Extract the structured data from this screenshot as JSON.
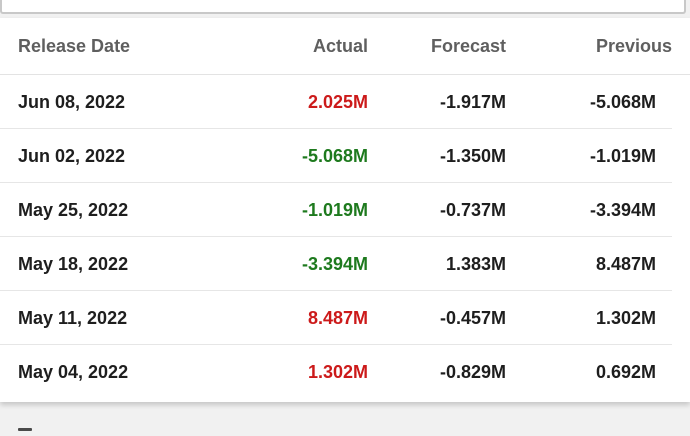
{
  "table": {
    "headers": {
      "date": "Release Date",
      "actual": "Actual",
      "forecast": "Forecast",
      "previous": "Previous"
    },
    "rows": [
      {
        "date": "Jun 08, 2022",
        "actual": "2.025M",
        "actual_trend": "up",
        "forecast": "-1.917M",
        "previous": "-5.068M"
      },
      {
        "date": "Jun 02, 2022",
        "actual": "-5.068M",
        "actual_trend": "down",
        "forecast": "-1.350M",
        "previous": "-1.019M"
      },
      {
        "date": "May 25, 2022",
        "actual": "-1.019M",
        "actual_trend": "down",
        "forecast": "-0.737M",
        "previous": "-3.394M"
      },
      {
        "date": "May 18, 2022",
        "actual": "-3.394M",
        "actual_trend": "down",
        "forecast": "1.383M",
        "previous": "8.487M"
      },
      {
        "date": "May 11, 2022",
        "actual": "8.487M",
        "actual_trend": "up",
        "forecast": "-0.457M",
        "previous": "1.302M"
      },
      {
        "date": "May 04, 2022",
        "actual": "1.302M",
        "actual_trend": "up",
        "forecast": "-0.829M",
        "previous": "0.692M"
      }
    ]
  },
  "colors": {
    "up": "#cc1a1a",
    "down": "#1e7a1e",
    "header_text": "#5f5f5f",
    "body_text": "#1e1e1e"
  }
}
